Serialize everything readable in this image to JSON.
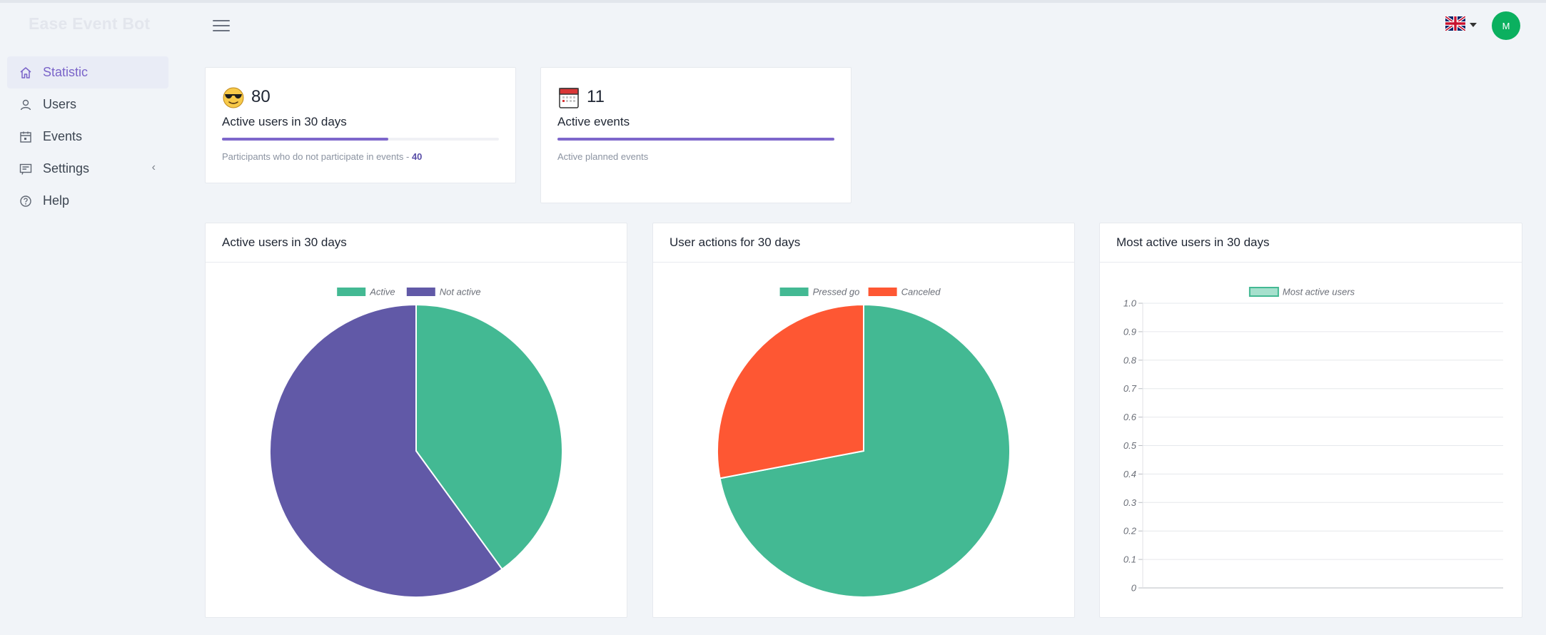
{
  "app": {
    "brand": "Ease Event Bot",
    "avatar_initial": "M"
  },
  "sidebar": {
    "items": [
      {
        "label": "Statistic",
        "icon": "home-icon",
        "active": true
      },
      {
        "label": "Users",
        "icon": "user-icon"
      },
      {
        "label": "Events",
        "icon": "calendar-icon"
      },
      {
        "label": "Settings",
        "icon": "settings-list-icon",
        "has_submenu": true
      },
      {
        "label": "Help",
        "icon": "help-circle-icon"
      }
    ]
  },
  "header": {
    "language_flag": "uk-flag-icon"
  },
  "stats": {
    "active_users": {
      "value": "80",
      "label": "Active users in 30 days",
      "note_prefix": "Participants who do not participate in events - ",
      "note_value": "40",
      "progress": 0.6
    },
    "active_events": {
      "value": "11",
      "label": "Active events",
      "note": "Active planned events",
      "progress": 1.0
    }
  },
  "colors": {
    "accent": "#7e67cb",
    "green": "#43b993",
    "purple": "#6159a7",
    "orange": "#fe5733",
    "avatar": "#0bb05f"
  },
  "chart_data": [
    {
      "type": "pie",
      "title": "Active users in 30 days",
      "categories": [
        "Active",
        "Not active"
      ],
      "values": [
        40,
        60
      ],
      "colors": [
        "#43b993",
        "#6159a7"
      ],
      "legend": "top"
    },
    {
      "type": "pie",
      "title": "User actions for 30 days",
      "categories": [
        "Pressed go",
        "Canceled"
      ],
      "values": [
        72,
        28
      ],
      "colors": [
        "#43b993",
        "#fe5733"
      ],
      "legend": "top"
    },
    {
      "type": "bar",
      "title": "Most active users in 30 days",
      "categories": [],
      "series": [
        {
          "name": "Most active users",
          "values": []
        }
      ],
      "yticks": [
        "0",
        "0.1",
        "0.2",
        "0.3",
        "0.4",
        "0.5",
        "0.6",
        "0.7",
        "0.8",
        "0.9",
        "1.0"
      ],
      "ylim": [
        0,
        1
      ],
      "grid": true,
      "legend": "top",
      "colors": [
        "#a6e0cd",
        "#43b993"
      ]
    }
  ]
}
